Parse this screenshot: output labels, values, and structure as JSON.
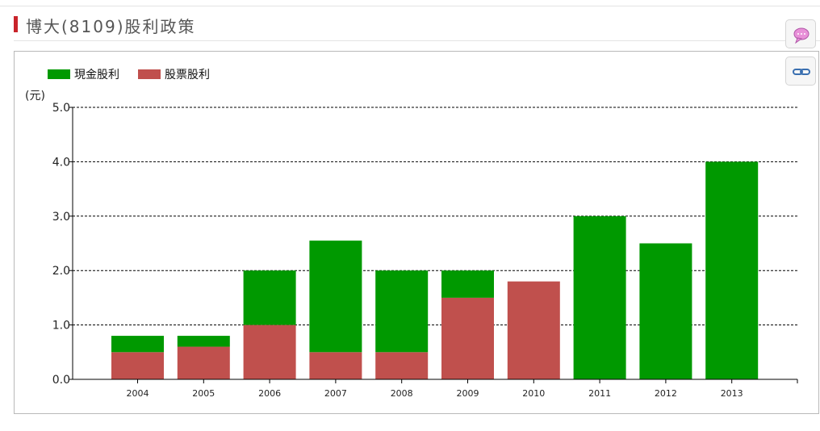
{
  "header": {
    "title": "博大(8109)股利政策"
  },
  "chart_data": {
    "type": "bar",
    "stacked": true,
    "categories": [
      "2004",
      "2005",
      "2006",
      "2007",
      "2008",
      "2009",
      "2010",
      "2011",
      "2012",
      "2013"
    ],
    "series": [
      {
        "name": "股票股利",
        "color": "#c0504d",
        "values": [
          0.5,
          0.6,
          1.0,
          0.5,
          0.5,
          1.5,
          1.8,
          0,
          0,
          0
        ]
      },
      {
        "name": "現金股利",
        "color": "#009900",
        "values": [
          0.3,
          0.2,
          1.0,
          2.05,
          1.5,
          0.5,
          0,
          3.0,
          2.5,
          4.0
        ]
      }
    ],
    "legend_order": [
      "現金股利",
      "股票股利"
    ],
    "ylabel": "(元)",
    "ylim": [
      0,
      5
    ],
    "yticks": [
      "0.0",
      "1.0",
      "2.0",
      "3.0",
      "4.0",
      "5.0"
    ],
    "grid": "dashed-horizontal",
    "legend_position": "top-left"
  },
  "side_buttons": [
    {
      "icon": "speech-bubble-icon"
    },
    {
      "icon": "link-icon"
    }
  ]
}
